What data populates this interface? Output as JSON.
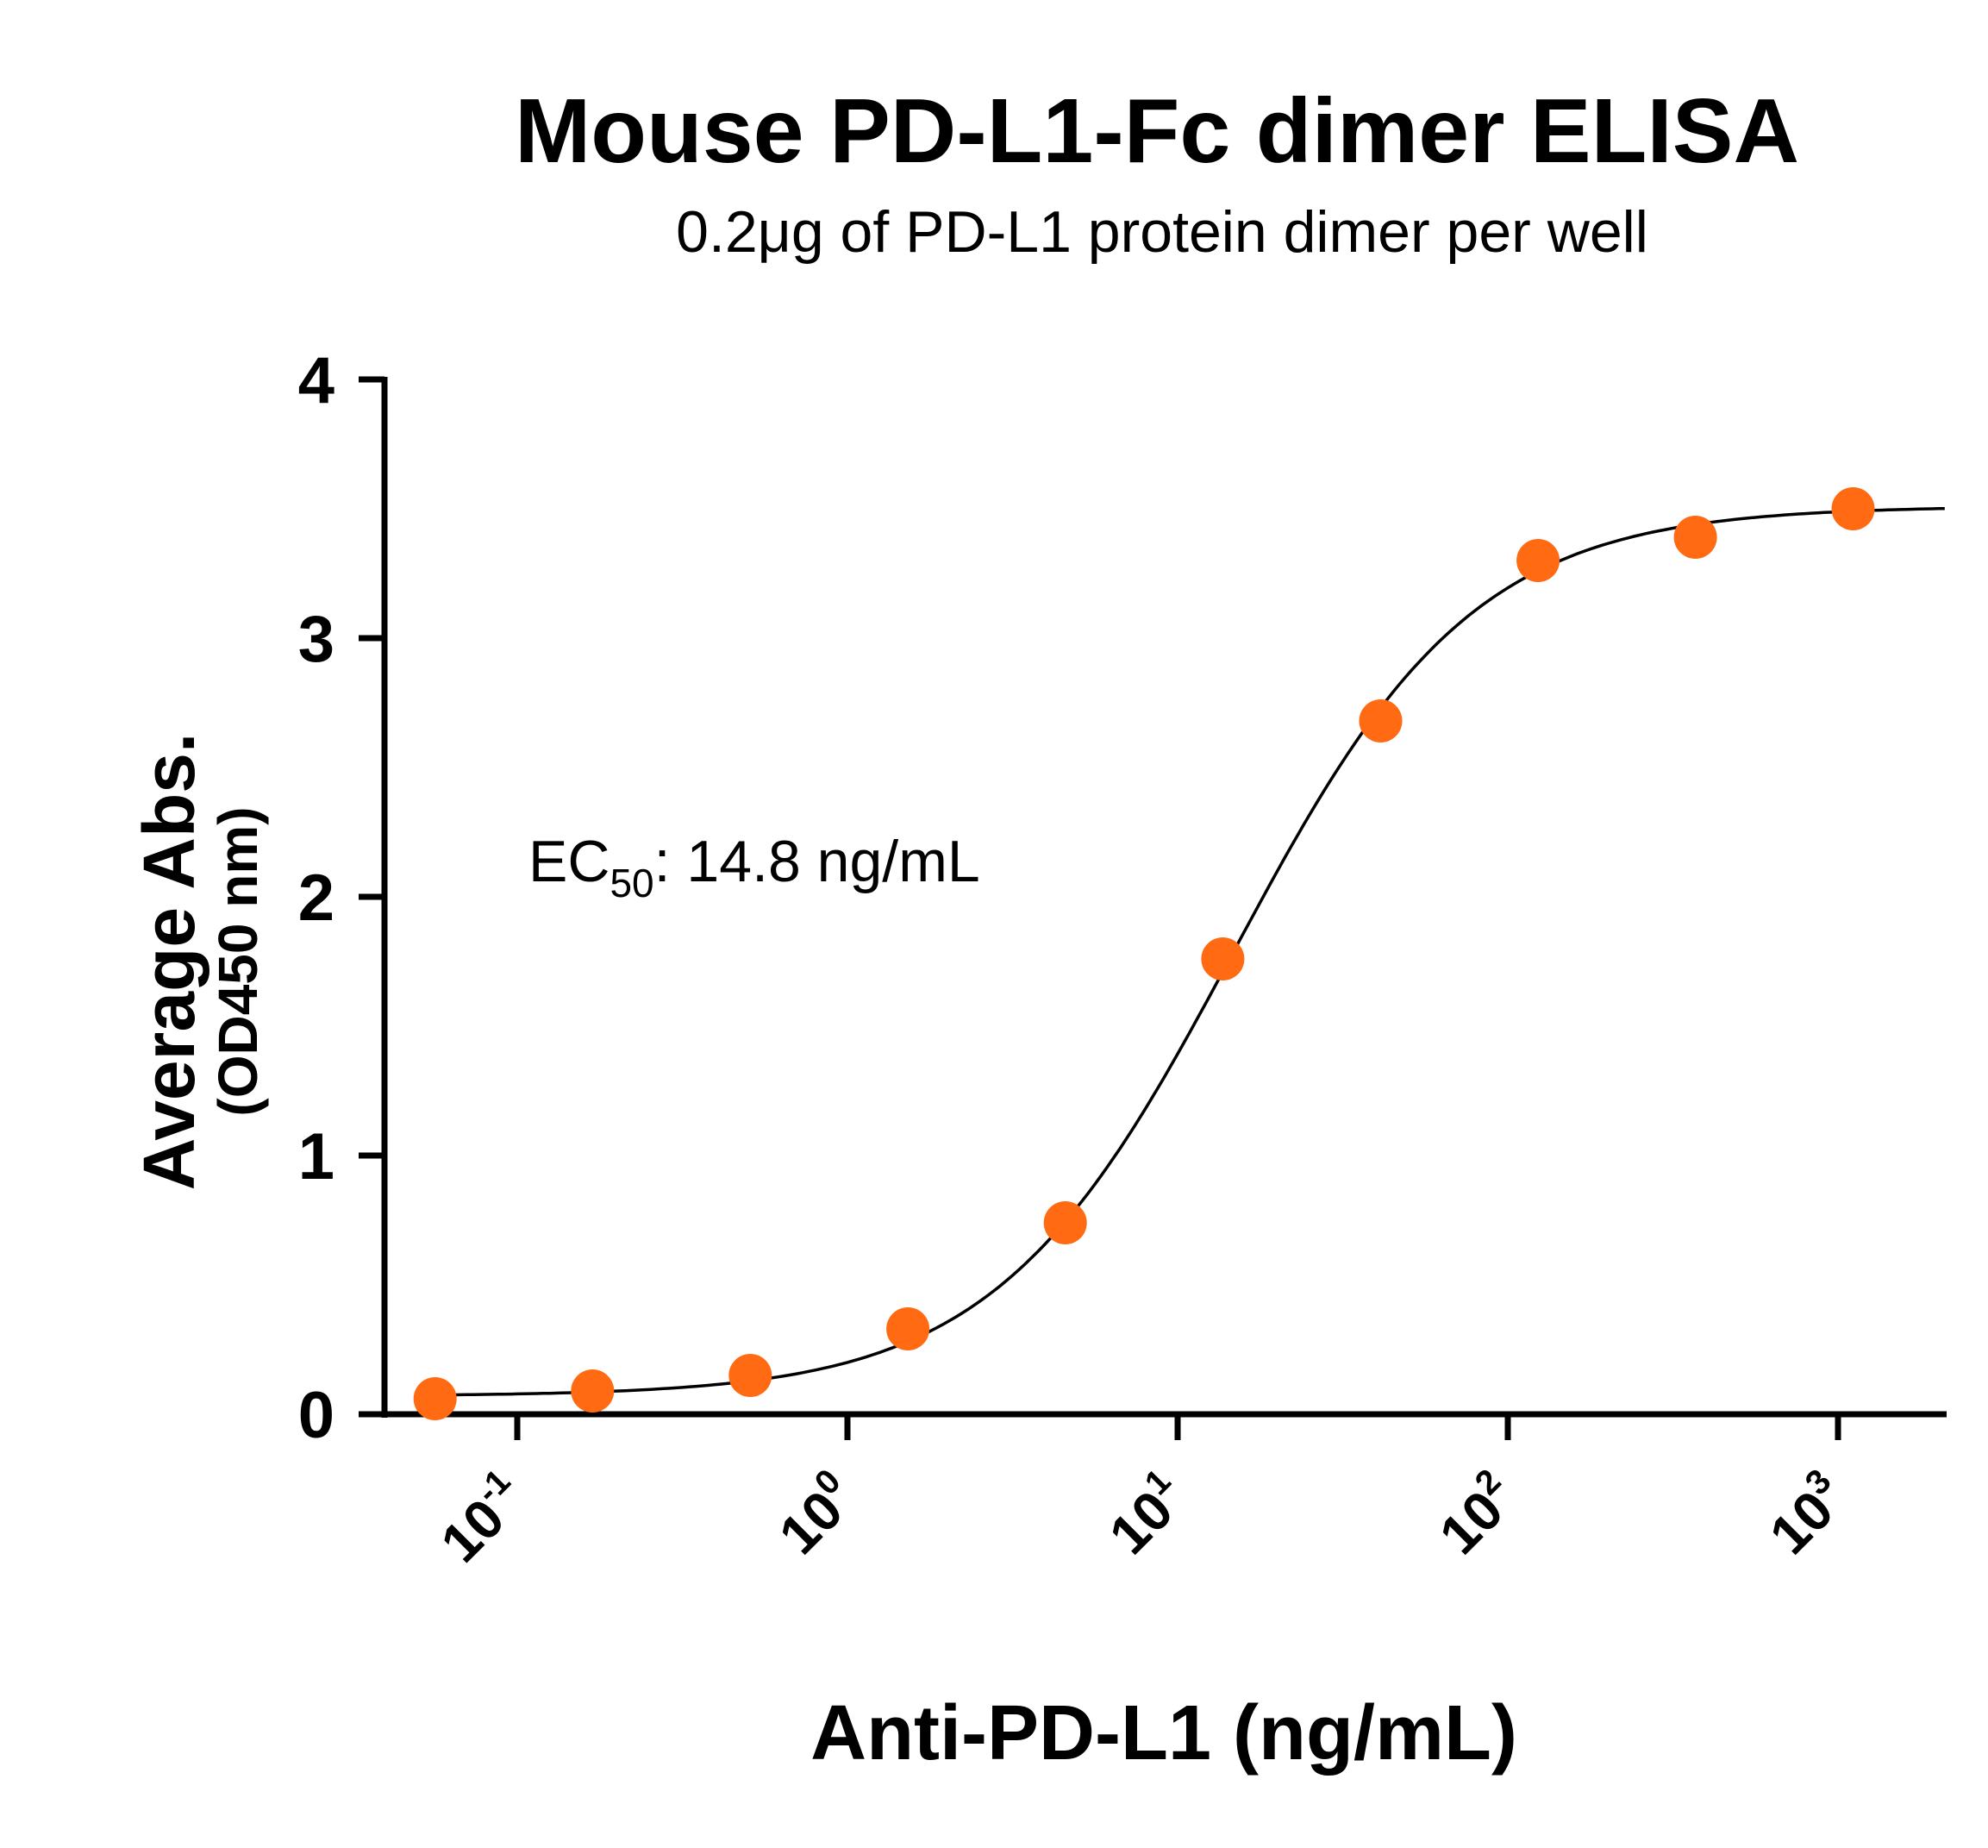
{
  "chart_data": {
    "type": "scatter",
    "title": "Mouse PD-L1-Fc dimer ELISA",
    "subtitle": "0.2μg of PD-L1 protein dimer per well",
    "ylabel_line1": "Average Abs.",
    "ylabel_line2": "(OD450 nm)",
    "xlabel": "Anti-PD-L1 (ng/mL)",
    "annotation": {
      "prefix": "EC",
      "subscript": "50",
      "suffix": ": 14.8 ng/mL"
    },
    "x_scale": "log",
    "xlim": [
      0.04,
      2300
    ],
    "ylim": [
      0,
      4
    ],
    "y_ticks": [
      0,
      1,
      2,
      3,
      4
    ],
    "x_ticks": [
      {
        "value": 0.1,
        "base": "10",
        "exp": "-1"
      },
      {
        "value": 1,
        "base": "10",
        "exp": "0"
      },
      {
        "value": 10,
        "base": "10",
        "exp": "1"
      },
      {
        "value": 100,
        "base": "10",
        "exp": "2"
      },
      {
        "value": 1000,
        "base": "10",
        "exp": "3"
      }
    ],
    "grid": false,
    "points": {
      "color": "#ff6a13",
      "x": [
        0.0564,
        0.169,
        0.508,
        1.524,
        4.57,
        13.7,
        41.2,
        123.5,
        370,
        1111
      ],
      "y": [
        0.06,
        0.09,
        0.15,
        0.33,
        0.74,
        1.76,
        2.68,
        3.3,
        3.39,
        3.5
      ]
    },
    "fit_curve": {
      "color": "#000000",
      "bottom": 0.07,
      "top": 3.51,
      "ec50": 14.8,
      "hill": 1.2
    }
  }
}
